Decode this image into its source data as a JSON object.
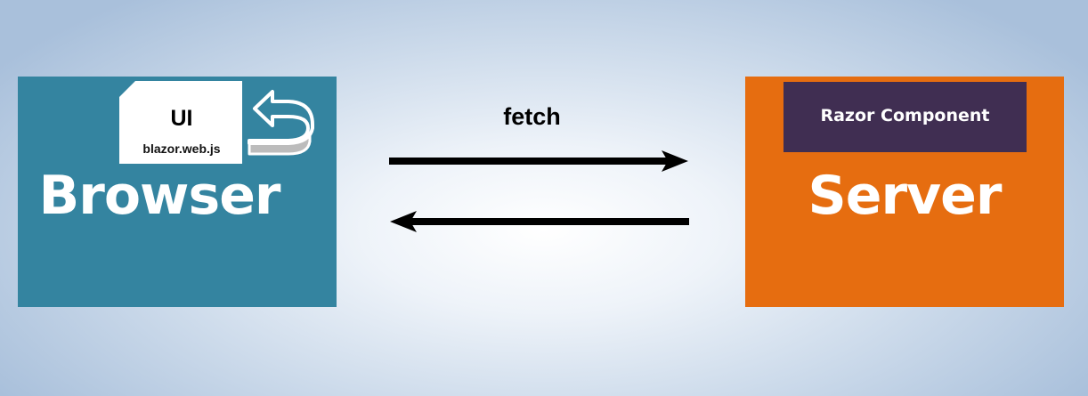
{
  "browser": {
    "title": "Browser",
    "document": {
      "ui_label": "UI",
      "script_label": "blazor.web.js"
    }
  },
  "server": {
    "title": "Server",
    "component_label": "Razor Component"
  },
  "connection": {
    "label": "fetch"
  },
  "colors": {
    "browser": "#3484a0",
    "server": "#e66d10",
    "component": "#402e52",
    "arrow": "#000000"
  }
}
